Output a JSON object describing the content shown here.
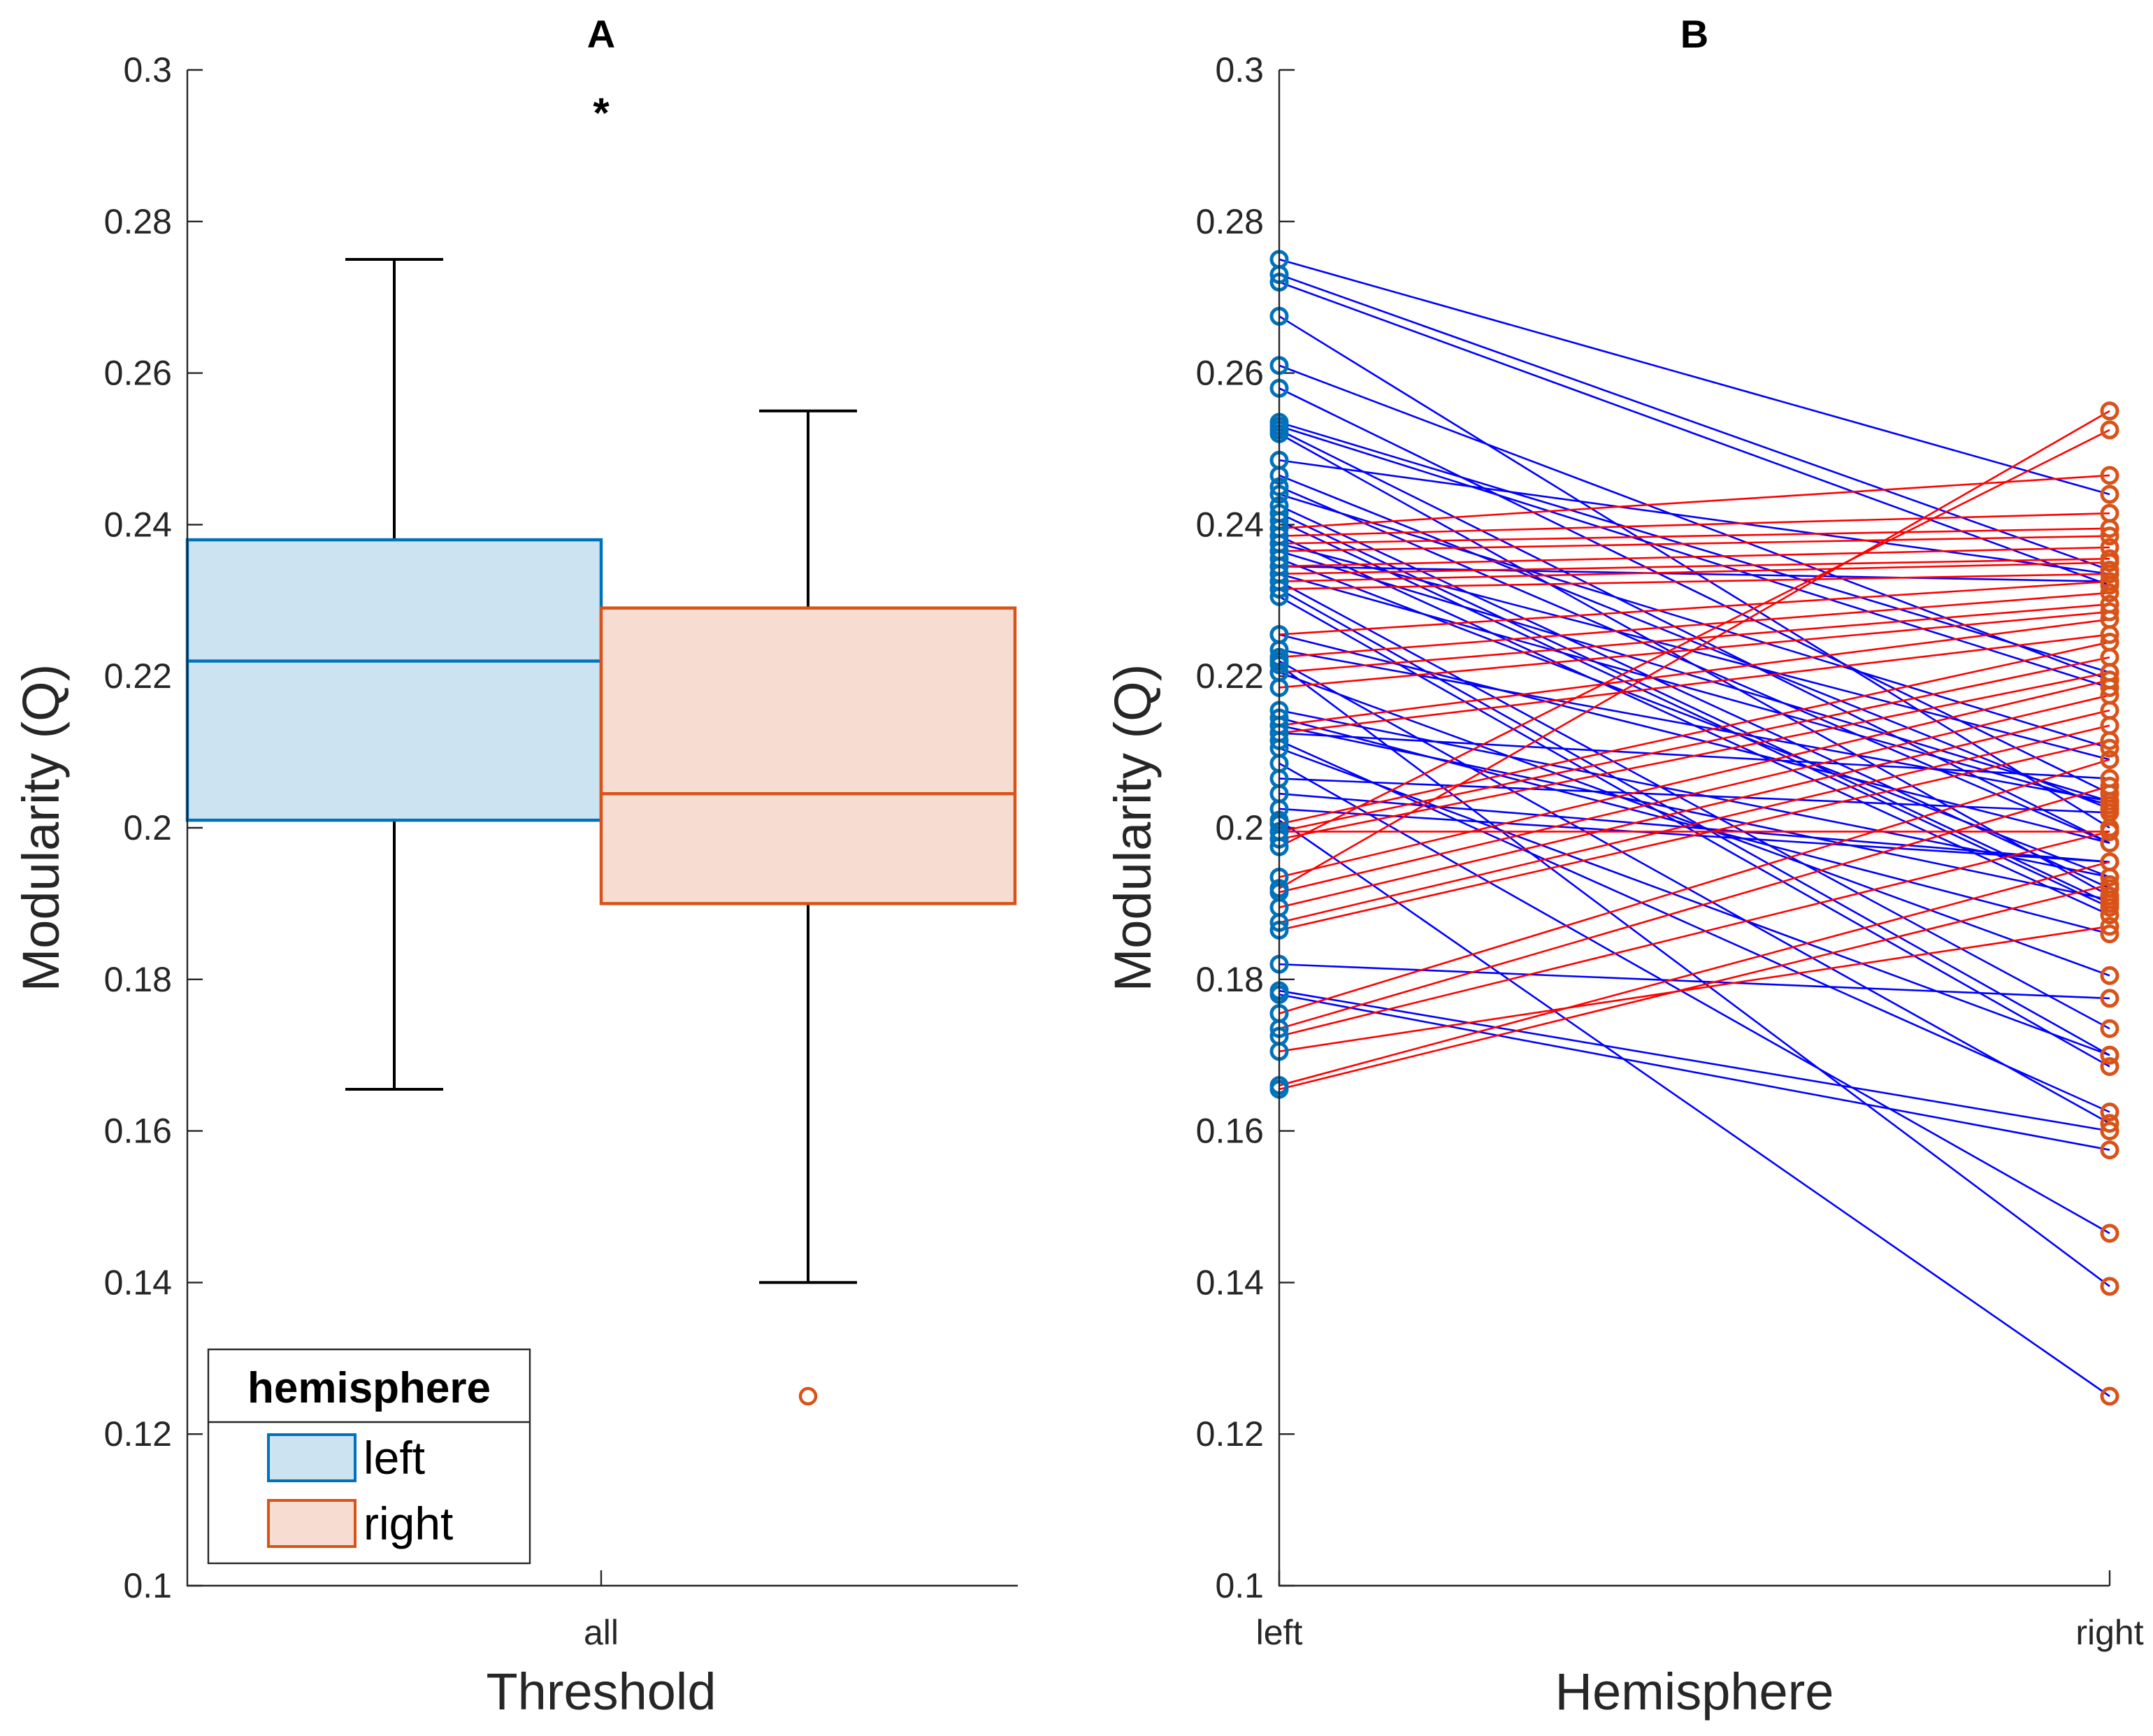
{
  "chart_data": [
    {
      "panel": "A",
      "type": "box",
      "title": "A",
      "xlabel": "Threshold",
      "ylabel": "Modularity (Q)",
      "categories": [
        "all"
      ],
      "ylim": [
        0.1,
        0.3
      ],
      "yticks": [
        "0.1",
        "0.12",
        "0.14",
        "0.16",
        "0.18",
        "0.2",
        "0.22",
        "0.24",
        "0.26",
        "0.28",
        "0.3"
      ],
      "legend": {
        "title": "hemisphere",
        "placement": "bottom-left",
        "entries": [
          "left",
          "right"
        ]
      },
      "series": [
        {
          "name": "left",
          "color": "#0072BD",
          "fill": "#CCE3F1",
          "q1": 0.201,
          "median": 0.222,
          "q3": 0.238,
          "whisker_low": 0.1655,
          "whisker_high": 0.275,
          "outliers": []
        },
        {
          "name": "right",
          "color": "#D95319",
          "fill": "#F7DDD1",
          "q1": 0.19,
          "median": 0.2045,
          "q3": 0.229,
          "whisker_low": 0.14,
          "whisker_high": 0.255,
          "outliers": [
            0.125
          ]
        }
      ],
      "significance_marker": "*"
    },
    {
      "panel": "B",
      "type": "line",
      "title": "B",
      "xlabel": "Hemisphere",
      "ylabel": "Modularity (Q)",
      "categories": [
        "left",
        "right"
      ],
      "ylim": [
        0.1,
        0.3
      ],
      "yticks": [
        "0.1",
        "0.12",
        "0.14",
        "0.16",
        "0.18",
        "0.2",
        "0.22",
        "0.24",
        "0.26",
        "0.28",
        "0.3"
      ],
      "left_marker_color": "#0072BD",
      "right_marker_color": "#D95319",
      "decrease_color": "#0000FF",
      "increase_color": "#FF0000",
      "pairs": [
        [
          0.275,
          0.244
        ],
        [
          0.273,
          0.234
        ],
        [
          0.272,
          0.232
        ],
        [
          0.2675,
          0.2
        ],
        [
          0.261,
          0.2195
        ],
        [
          0.258,
          0.2045
        ],
        [
          0.2535,
          0.2205
        ],
        [
          0.253,
          0.2185
        ],
        [
          0.2525,
          0.198
        ],
        [
          0.252,
          0.191
        ],
        [
          0.2485,
          0.2335
        ],
        [
          0.2465,
          0.2025
        ],
        [
          0.245,
          0.198
        ],
        [
          0.244,
          0.2105
        ],
        [
          0.2425,
          0.192
        ],
        [
          0.2415,
          0.19
        ],
        [
          0.2405,
          0.1895
        ],
        [
          0.2385,
          0.1885
        ],
        [
          0.2375,
          0.209
        ],
        [
          0.2365,
          0.2035
        ],
        [
          0.2355,
          0.1935
        ],
        [
          0.2345,
          0.2325
        ],
        [
          0.2335,
          0.203
        ],
        [
          0.2325,
          0.1735
        ],
        [
          0.2315,
          0.17
        ],
        [
          0.2305,
          0.1685
        ],
        [
          0.2255,
          0.198
        ],
        [
          0.2235,
          0.2035
        ],
        [
          0.222,
          0.161
        ],
        [
          0.2205,
          0.1805
        ],
        [
          0.2155,
          0.1935
        ],
        [
          0.2145,
          0.186
        ],
        [
          0.2135,
          0.1905
        ],
        [
          0.2125,
          0.2065
        ],
        [
          0.2115,
          0.1625
        ],
        [
          0.2105,
          0.17
        ],
        [
          0.2085,
          0.1465
        ],
        [
          0.2065,
          0.202
        ],
        [
          0.2045,
          0.1955
        ],
        [
          0.2025,
          0.1955
        ],
        [
          0.201,
          0.125
        ],
        [
          0.1995,
          0.1995
        ],
        [
          0.182,
          0.1775
        ],
        [
          0.1785,
          0.16
        ],
        [
          0.178,
          0.1575
        ],
        [
          0.2215,
          0.1395
        ],
        [
          0.2395,
          0.2465
        ],
        [
          0.2385,
          0.2415
        ],
        [
          0.2375,
          0.2395
        ],
        [
          0.2365,
          0.2385
        ],
        [
          0.2345,
          0.237
        ],
        [
          0.2335,
          0.2355
        ],
        [
          0.2325,
          0.235
        ],
        [
          0.2315,
          0.2335
        ],
        [
          0.2255,
          0.2325
        ],
        [
          0.2225,
          0.231
        ],
        [
          0.2205,
          0.2295
        ],
        [
          0.2185,
          0.2285
        ],
        [
          0.2135,
          0.2275
        ],
        [
          0.2125,
          0.2255
        ],
        [
          0.2005,
          0.2245
        ],
        [
          0.1995,
          0.2225
        ],
        [
          0.1985,
          0.2205
        ],
        [
          0.1935,
          0.2195
        ],
        [
          0.1915,
          0.2175
        ],
        [
          0.1895,
          0.2155
        ],
        [
          0.1875,
          0.2135
        ],
        [
          0.1865,
          0.2115
        ],
        [
          0.1755,
          0.209
        ],
        [
          0.1735,
          0.2055
        ],
        [
          0.1725,
          0.1995
        ],
        [
          0.166,
          0.1955
        ],
        [
          0.1655,
          0.1925
        ],
        [
          0.1705,
          0.187
        ],
        [
          0.192,
          0.255
        ],
        [
          0.1975,
          0.2525
        ]
      ]
    }
  ]
}
